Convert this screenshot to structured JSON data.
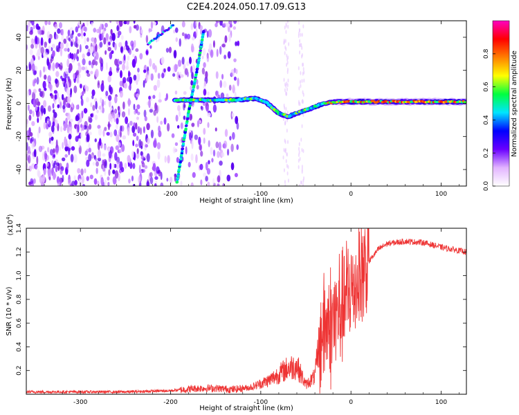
{
  "title": "C2E4.2024.050.17.09.G13",
  "chart_data": [
    {
      "type": "heatmap",
      "xlabel": "Height of straight line (km)",
      "ylabel": "Frequency (Hz)",
      "xlim": [
        -360,
        128
      ],
      "ylim": [
        -50,
        50
      ],
      "xticks": [
        -300,
        -200,
        -100,
        0,
        100
      ],
      "yticks": [
        -40,
        -20,
        0,
        20,
        40
      ],
      "colorbar": {
        "label": "Normalized spectral amplitude",
        "range": [
          0,
          1
        ],
        "ticks": [
          "0.0",
          "0.2",
          "0.4",
          "0.6",
          "0.8"
        ],
        "colormap": [
          "#ffffff",
          "#e2b4ff",
          "#6a00ff",
          "#0000ff",
          "#00e5ff",
          "#00ff40",
          "#ffff00",
          "#ff8000",
          "#ff0000",
          "#ff00c0"
        ]
      },
      "features": {
        "noise_region_x": [
          -360,
          -125
        ],
        "diagonal_trace": [
          [
            -193,
            -48
          ],
          [
            -180,
            -5
          ],
          [
            -178,
            0
          ],
          [
            -170,
            22
          ],
          [
            -163,
            45
          ]
        ],
        "upper_trace": [
          [
            -225,
            36
          ],
          [
            -215,
            40
          ],
          [
            -205,
            44
          ],
          [
            -196,
            48
          ]
        ],
        "carrier_trace": [
          [
            -195,
            2
          ],
          [
            -165,
            2
          ],
          [
            -130,
            2
          ],
          [
            -105,
            3
          ],
          [
            -95,
            1
          ],
          [
            -80,
            -6
          ],
          [
            -70,
            -8
          ],
          [
            -60,
            -6
          ],
          [
            -45,
            -3
          ],
          [
            -30,
            0
          ],
          [
            -15,
            1
          ],
          [
            0,
            1
          ],
          [
            40,
            1
          ],
          [
            80,
            1
          ],
          [
            100,
            1
          ],
          [
            128,
            1
          ]
        ]
      }
    },
    {
      "type": "line",
      "xlabel": "Height of straight line (km)",
      "ylabel": "SNR (10 * v/v)",
      "yunit_multiplier": "(x10",
      "yunit_exponent": "4",
      "yunit_close": ")",
      "xlim": [
        -360,
        128
      ],
      "ylim": [
        0,
        1.4
      ],
      "xticks": [
        -300,
        -200,
        -100,
        0,
        100
      ],
      "yticks": [
        0.2,
        0.4,
        0.6,
        0.8,
        1.0,
        1.2,
        1.4
      ],
      "ytick_labels": [
        "0.2",
        "0.4",
        "0.6",
        "0.8",
        "1.0",
        "1.2",
        "1.4"
      ],
      "series": [
        {
          "name": "SNR",
          "color": "#ee3333",
          "x": [
            -360,
            -300,
            -250,
            -200,
            -170,
            -150,
            -130,
            -110,
            -90,
            -70,
            -60,
            -50,
            -40,
            -35,
            -30,
            -20,
            -10,
            0,
            10,
            20,
            30,
            40,
            60,
            80,
            100,
            128
          ],
          "y": [
            0.02,
            0.02,
            0.02,
            0.03,
            0.05,
            0.05,
            0.04,
            0.06,
            0.12,
            0.22,
            0.24,
            0.08,
            0.15,
            0.45,
            0.55,
            0.6,
            0.75,
            0.85,
            1.0,
            1.12,
            1.22,
            1.27,
            1.29,
            1.28,
            1.24,
            1.2
          ]
        }
      ]
    }
  ]
}
